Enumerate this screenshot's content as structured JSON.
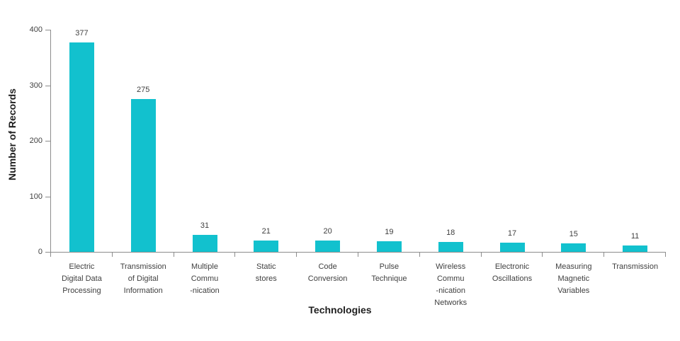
{
  "chart_data": {
    "type": "bar",
    "title": "",
    "xlabel": "Technologies",
    "ylabel": "Number of Records",
    "categories": [
      "Electric Digital Data Processing",
      "Transmission of Digital Information",
      "Multiple Commu -nication",
      "Static stores",
      "Code Conversion",
      "Pulse Technique",
      "Wireless Commu -nication Networks",
      "Electronic Oscillations",
      "Measuring Magnetic Variables",
      "Transmission"
    ],
    "category_lines": [
      [
        "Electric",
        "Digital Data",
        "Processing"
      ],
      [
        "Transmission",
        "of Digital",
        "Information"
      ],
      [
        "Multiple",
        "Commu",
        "-nication"
      ],
      [
        "Static",
        "stores"
      ],
      [
        "Code",
        "Conversion"
      ],
      [
        "Pulse",
        "Technique"
      ],
      [
        "Wireless",
        "Commu",
        "-nication",
        "Networks"
      ],
      [
        "Electronic",
        "Oscillations"
      ],
      [
        "Measuring",
        "Magnetic",
        "Variables"
      ],
      [
        "Transmission"
      ]
    ],
    "values": [
      377,
      275,
      31,
      21,
      20,
      19,
      18,
      17,
      15,
      11
    ],
    "ylim": [
      0,
      400
    ],
    "yticks": [
      0,
      100,
      200,
      300,
      400
    ],
    "grid": false,
    "legend": null,
    "bar_color": "#12c1ce",
    "axis_color": "#8c8c8c",
    "text_color": "#404040",
    "title_color": "#1f1f1f"
  }
}
